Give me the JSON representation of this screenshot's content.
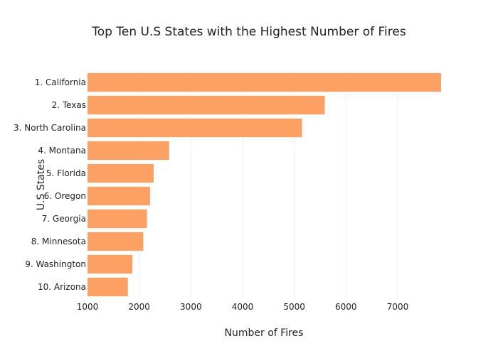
{
  "chart_data": {
    "type": "bar",
    "orientation": "horizontal",
    "title": "Top Ten U.S States with the Highest Number of Fires",
    "xlabel": "Number of Fires",
    "ylabel": "U.S States",
    "categories": [
      "1. California",
      "2. Texas",
      "3. North Carolina",
      "4. Montana",
      "5. Florida",
      "6. Oregon",
      "7. Georgia",
      "8. Minnesota",
      "9. Washington",
      "10. Arizona"
    ],
    "values": [
      7840,
      5590,
      5150,
      2580,
      2280,
      2210,
      2150,
      2080,
      1870,
      1780
    ],
    "xlim": [
      1000,
      7840
    ],
    "xticks": [
      1000,
      2000,
      3000,
      4000,
      5000,
      6000,
      7000
    ],
    "grid": true,
    "bar_color": "#fca064"
  }
}
